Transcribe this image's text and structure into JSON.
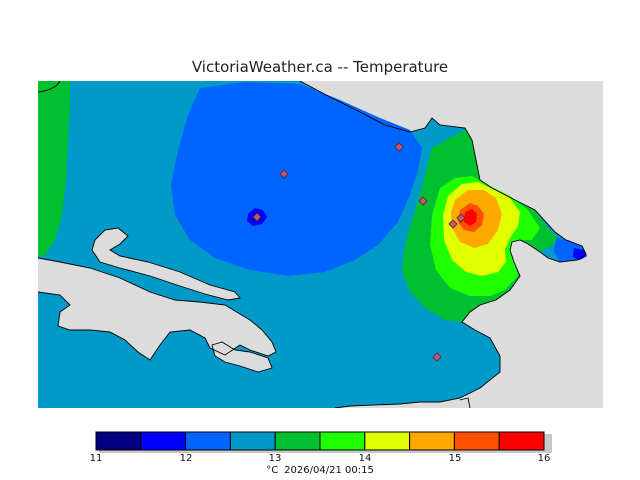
{
  "title": "VictoriaWeather.ca -- Temperature",
  "legend": {
    "ticks": [
      "11",
      "12",
      "13",
      "14",
      "15",
      "16"
    ],
    "colors": [
      "#000080",
      "#0000ff",
      "#0064ff",
      "#0099c8",
      "#00c030",
      "#20ff00",
      "#e0ff00",
      "#ffa800",
      "#ff5000",
      "#ff0000"
    ],
    "unit": "°C",
    "timestamp": "2026/04/21 00:15"
  },
  "map_colors": {
    "no_data": "#dcdcdc",
    "coastline": "#000000",
    "station_marker": "#d05070"
  },
  "station_count": 7
}
